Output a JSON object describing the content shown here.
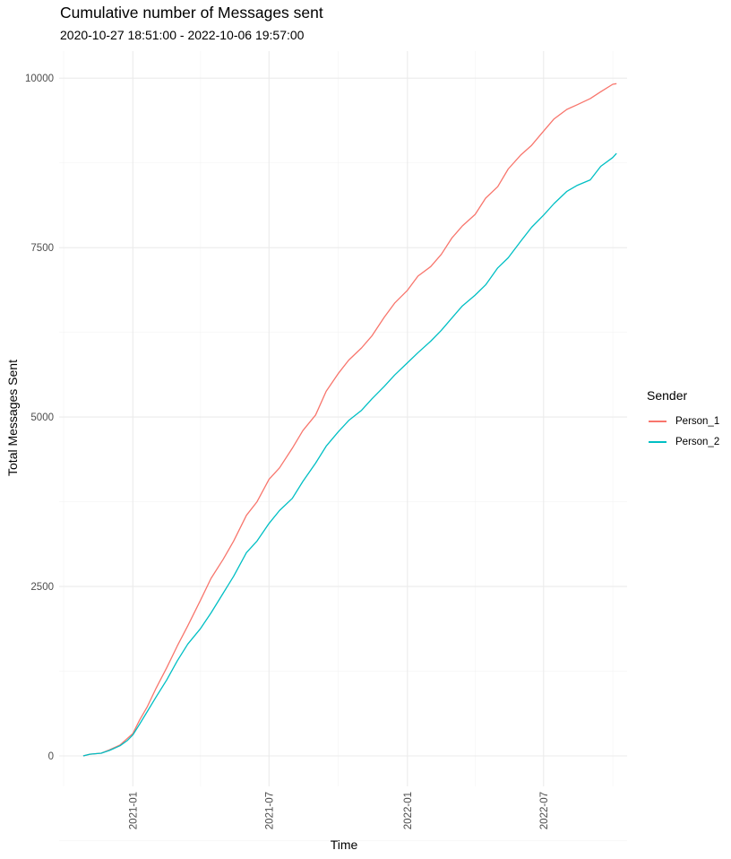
{
  "chart_data": {
    "type": "line",
    "title": "Cumulative number of Messages sent",
    "subtitle": "2020-10-27 18:51:00  -  2022-10-06 19:57:00",
    "xlabel": "Time",
    "ylabel": "Total Messages Sent",
    "xlim": [
      "2020-09-25",
      "2022-10-20"
    ],
    "ylim": [
      -450,
      10400
    ],
    "x_ticks": [
      "2021-01",
      "2021-07",
      "2022-01",
      "2022-07"
    ],
    "y_ticks": [
      0,
      2500,
      5000,
      7500,
      10000
    ],
    "y_tick_labels": [
      "0",
      "2500",
      "5000",
      "7500",
      "10000"
    ],
    "grid": true,
    "legend": {
      "title": "Sender",
      "position": "right"
    },
    "series": [
      {
        "name": "Person_1",
        "color": "#F8766D",
        "x": [
          "2020-10-27",
          "2020-11-05",
          "2020-11-20",
          "2020-12-01",
          "2020-12-15",
          "2020-12-25",
          "2021-01-01",
          "2021-01-10",
          "2021-01-20",
          "2021-02-01",
          "2021-02-15",
          "2021-03-01",
          "2021-03-15",
          "2021-04-01",
          "2021-04-15",
          "2021-05-01",
          "2021-05-15",
          "2021-06-01",
          "2021-06-15",
          "2021-07-01",
          "2021-07-15",
          "2021-08-01",
          "2021-08-15",
          "2021-09-01",
          "2021-09-15",
          "2021-10-01",
          "2021-10-15",
          "2021-11-01",
          "2021-11-15",
          "2021-12-01",
          "2021-12-15",
          "2022-01-01",
          "2022-01-15",
          "2022-02-01",
          "2022-02-15",
          "2022-03-01",
          "2022-03-15",
          "2022-04-01",
          "2022-04-15",
          "2022-05-01",
          "2022-05-15",
          "2022-06-01",
          "2022-06-15",
          "2022-07-01",
          "2022-07-15",
          "2022-08-01",
          "2022-08-15",
          "2022-09-01",
          "2022-09-15",
          "2022-10-01",
          "2022-10-06"
        ],
        "values": [
          0,
          25,
          40,
          90,
          160,
          260,
          330,
          530,
          720,
          1000,
          1300,
          1620,
          1920,
          2300,
          2620,
          2900,
          3170,
          3550,
          3750,
          4080,
          4250,
          4540,
          4800,
          5030,
          5380,
          5640,
          5840,
          6020,
          6200,
          6470,
          6680,
          6870,
          7080,
          7220,
          7400,
          7640,
          7820,
          7990,
          8230,
          8400,
          8660,
          8870,
          9010,
          9220,
          9400,
          9540,
          9610,
          9700,
          9800,
          9910,
          9920
        ]
      },
      {
        "name": "Person_2",
        "color": "#00BFC4",
        "x": [
          "2020-10-27",
          "2020-11-05",
          "2020-11-20",
          "2020-12-01",
          "2020-12-15",
          "2020-12-25",
          "2021-01-01",
          "2021-01-10",
          "2021-01-20",
          "2021-02-01",
          "2021-02-15",
          "2021-03-01",
          "2021-03-15",
          "2021-04-01",
          "2021-04-15",
          "2021-05-01",
          "2021-05-15",
          "2021-06-01",
          "2021-06-15",
          "2021-07-01",
          "2021-07-15",
          "2021-08-01",
          "2021-08-15",
          "2021-09-01",
          "2021-09-15",
          "2021-10-01",
          "2021-10-15",
          "2021-11-01",
          "2021-11-15",
          "2021-12-01",
          "2021-12-15",
          "2022-01-01",
          "2022-01-15",
          "2022-02-01",
          "2022-02-15",
          "2022-03-01",
          "2022-03-15",
          "2022-04-01",
          "2022-04-15",
          "2022-05-01",
          "2022-05-15",
          "2022-06-01",
          "2022-06-15",
          "2022-07-01",
          "2022-07-15",
          "2022-08-01",
          "2022-08-15",
          "2022-09-01",
          "2022-09-15",
          "2022-10-01",
          "2022-10-06"
        ],
        "values": [
          0,
          25,
          40,
          80,
          150,
          230,
          310,
          470,
          650,
          870,
          1120,
          1400,
          1650,
          1880,
          2110,
          2400,
          2650,
          3000,
          3170,
          3430,
          3620,
          3800,
          4050,
          4320,
          4570,
          4780,
          4950,
          5100,
          5270,
          5450,
          5620,
          5800,
          5950,
          6120,
          6280,
          6460,
          6640,
          6800,
          6950,
          7200,
          7350,
          7600,
          7800,
          7980,
          8150,
          8330,
          8420,
          8500,
          8700,
          8830,
          8890
        ]
      }
    ]
  }
}
